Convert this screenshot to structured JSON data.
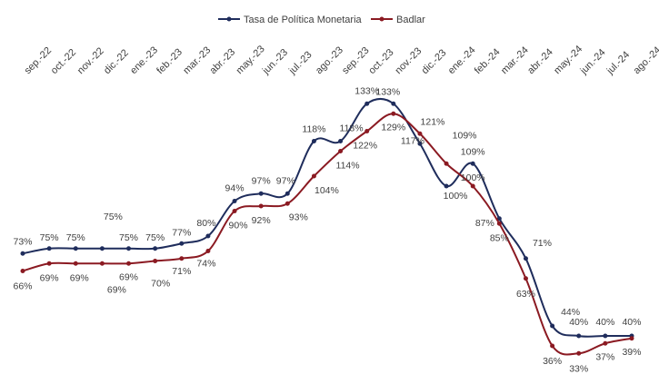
{
  "chart_data": {
    "type": "line",
    "categories": [
      "sep.-22",
      "oct.-22",
      "nov.-22",
      "dic.-22",
      "ene.-23",
      "feb.-23",
      "mar.-23",
      "abr.-23",
      "may.-23",
      "jun.-23",
      "jul.-23",
      "ago.-23",
      "sep.-23",
      "oct.-23",
      "nov.-23",
      "dic.-23",
      "ene.-24",
      "feb.-24",
      "mar.-24",
      "abr.-24",
      "may.-24",
      "jun.-24",
      "jul.-24",
      "ago.-24"
    ],
    "series": [
      {
        "name": "Tasa de Política Monetaria",
        "color": "#1f2d5c",
        "values": [
          73,
          75,
          75,
          75,
          75,
          75,
          77,
          80,
          94,
          97,
          97,
          118,
          118,
          133,
          133,
          117,
          100,
          109,
          87,
          71,
          44,
          40,
          40,
          40
        ],
        "value_labels": [
          "73%",
          "75%",
          "75%",
          "75%",
          "75%",
          "75%",
          "77%",
          "80%",
          "94%",
          "97%",
          "97%",
          "118%",
          "118%",
          "133%",
          "133%",
          "117%",
          "100%",
          "109%",
          "87%",
          "71%",
          "44%",
          "40%",
          "40%",
          "40%"
        ]
      },
      {
        "name": "Badlar",
        "color": "#8b1a22",
        "values": [
          66,
          69,
          69,
          69,
          69,
          70,
          71,
          74,
          90,
          92,
          93,
          104,
          114,
          122,
          129,
          121,
          109,
          100,
          85,
          63,
          36,
          33,
          37,
          39
        ],
        "value_labels": [
          "66%",
          "69%",
          "69%",
          "69%",
          "69%",
          "70%",
          "71%",
          "74%",
          "90%",
          "92%",
          "93%",
          "104%",
          "114%",
          "122%",
          "129%",
          "121%",
          "109%",
          "100%",
          "85%",
          "63%",
          "36%",
          "33%",
          "37%",
          "39%"
        ]
      }
    ],
    "ylim": [
      0,
      140
    ]
  }
}
